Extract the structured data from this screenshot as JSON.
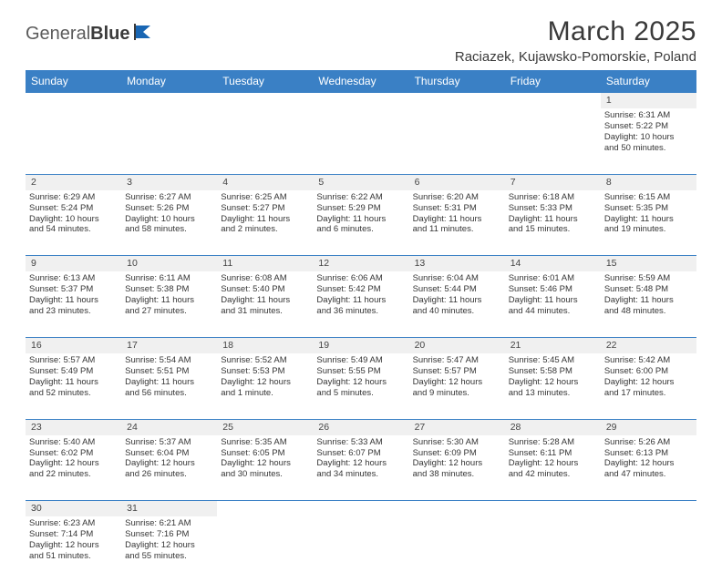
{
  "logo": {
    "word1": "General",
    "word2": "Blue"
  },
  "title": "March 2025",
  "subtitle": "Raciazek, Kujawsko-Pomorskie, Poland",
  "colors": {
    "header_bg": "#3a80c5",
    "header_fg": "#ffffff",
    "daynum_bg": "#f0f0f0",
    "text": "#353535",
    "logo_accent": "#1966b3"
  },
  "weekdays": [
    "Sunday",
    "Monday",
    "Tuesday",
    "Wednesday",
    "Thursday",
    "Friday",
    "Saturday"
  ],
  "weeks": [
    {
      "nums": [
        "",
        "",
        "",
        "",
        "",
        "",
        "1"
      ],
      "cells": [
        null,
        null,
        null,
        null,
        null,
        null,
        {
          "sr": "Sunrise: 6:31 AM",
          "ss": "Sunset: 5:22 PM",
          "d1": "Daylight: 10 hours",
          "d2": "and 50 minutes."
        }
      ]
    },
    {
      "nums": [
        "2",
        "3",
        "4",
        "5",
        "6",
        "7",
        "8"
      ],
      "cells": [
        {
          "sr": "Sunrise: 6:29 AM",
          "ss": "Sunset: 5:24 PM",
          "d1": "Daylight: 10 hours",
          "d2": "and 54 minutes."
        },
        {
          "sr": "Sunrise: 6:27 AM",
          "ss": "Sunset: 5:26 PM",
          "d1": "Daylight: 10 hours",
          "d2": "and 58 minutes."
        },
        {
          "sr": "Sunrise: 6:25 AM",
          "ss": "Sunset: 5:27 PM",
          "d1": "Daylight: 11 hours",
          "d2": "and 2 minutes."
        },
        {
          "sr": "Sunrise: 6:22 AM",
          "ss": "Sunset: 5:29 PM",
          "d1": "Daylight: 11 hours",
          "d2": "and 6 minutes."
        },
        {
          "sr": "Sunrise: 6:20 AM",
          "ss": "Sunset: 5:31 PM",
          "d1": "Daylight: 11 hours",
          "d2": "and 11 minutes."
        },
        {
          "sr": "Sunrise: 6:18 AM",
          "ss": "Sunset: 5:33 PM",
          "d1": "Daylight: 11 hours",
          "d2": "and 15 minutes."
        },
        {
          "sr": "Sunrise: 6:15 AM",
          "ss": "Sunset: 5:35 PM",
          "d1": "Daylight: 11 hours",
          "d2": "and 19 minutes."
        }
      ]
    },
    {
      "nums": [
        "9",
        "10",
        "11",
        "12",
        "13",
        "14",
        "15"
      ],
      "cells": [
        {
          "sr": "Sunrise: 6:13 AM",
          "ss": "Sunset: 5:37 PM",
          "d1": "Daylight: 11 hours",
          "d2": "and 23 minutes."
        },
        {
          "sr": "Sunrise: 6:11 AM",
          "ss": "Sunset: 5:38 PM",
          "d1": "Daylight: 11 hours",
          "d2": "and 27 minutes."
        },
        {
          "sr": "Sunrise: 6:08 AM",
          "ss": "Sunset: 5:40 PM",
          "d1": "Daylight: 11 hours",
          "d2": "and 31 minutes."
        },
        {
          "sr": "Sunrise: 6:06 AM",
          "ss": "Sunset: 5:42 PM",
          "d1": "Daylight: 11 hours",
          "d2": "and 36 minutes."
        },
        {
          "sr": "Sunrise: 6:04 AM",
          "ss": "Sunset: 5:44 PM",
          "d1": "Daylight: 11 hours",
          "d2": "and 40 minutes."
        },
        {
          "sr": "Sunrise: 6:01 AM",
          "ss": "Sunset: 5:46 PM",
          "d1": "Daylight: 11 hours",
          "d2": "and 44 minutes."
        },
        {
          "sr": "Sunrise: 5:59 AM",
          "ss": "Sunset: 5:48 PM",
          "d1": "Daylight: 11 hours",
          "d2": "and 48 minutes."
        }
      ]
    },
    {
      "nums": [
        "16",
        "17",
        "18",
        "19",
        "20",
        "21",
        "22"
      ],
      "cells": [
        {
          "sr": "Sunrise: 5:57 AM",
          "ss": "Sunset: 5:49 PM",
          "d1": "Daylight: 11 hours",
          "d2": "and 52 minutes."
        },
        {
          "sr": "Sunrise: 5:54 AM",
          "ss": "Sunset: 5:51 PM",
          "d1": "Daylight: 11 hours",
          "d2": "and 56 minutes."
        },
        {
          "sr": "Sunrise: 5:52 AM",
          "ss": "Sunset: 5:53 PM",
          "d1": "Daylight: 12 hours",
          "d2": "and 1 minute."
        },
        {
          "sr": "Sunrise: 5:49 AM",
          "ss": "Sunset: 5:55 PM",
          "d1": "Daylight: 12 hours",
          "d2": "and 5 minutes."
        },
        {
          "sr": "Sunrise: 5:47 AM",
          "ss": "Sunset: 5:57 PM",
          "d1": "Daylight: 12 hours",
          "d2": "and 9 minutes."
        },
        {
          "sr": "Sunrise: 5:45 AM",
          "ss": "Sunset: 5:58 PM",
          "d1": "Daylight: 12 hours",
          "d2": "and 13 minutes."
        },
        {
          "sr": "Sunrise: 5:42 AM",
          "ss": "Sunset: 6:00 PM",
          "d1": "Daylight: 12 hours",
          "d2": "and 17 minutes."
        }
      ]
    },
    {
      "nums": [
        "23",
        "24",
        "25",
        "26",
        "27",
        "28",
        "29"
      ],
      "cells": [
        {
          "sr": "Sunrise: 5:40 AM",
          "ss": "Sunset: 6:02 PM",
          "d1": "Daylight: 12 hours",
          "d2": "and 22 minutes."
        },
        {
          "sr": "Sunrise: 5:37 AM",
          "ss": "Sunset: 6:04 PM",
          "d1": "Daylight: 12 hours",
          "d2": "and 26 minutes."
        },
        {
          "sr": "Sunrise: 5:35 AM",
          "ss": "Sunset: 6:05 PM",
          "d1": "Daylight: 12 hours",
          "d2": "and 30 minutes."
        },
        {
          "sr": "Sunrise: 5:33 AM",
          "ss": "Sunset: 6:07 PM",
          "d1": "Daylight: 12 hours",
          "d2": "and 34 minutes."
        },
        {
          "sr": "Sunrise: 5:30 AM",
          "ss": "Sunset: 6:09 PM",
          "d1": "Daylight: 12 hours",
          "d2": "and 38 minutes."
        },
        {
          "sr": "Sunrise: 5:28 AM",
          "ss": "Sunset: 6:11 PM",
          "d1": "Daylight: 12 hours",
          "d2": "and 42 minutes."
        },
        {
          "sr": "Sunrise: 5:26 AM",
          "ss": "Sunset: 6:13 PM",
          "d1": "Daylight: 12 hours",
          "d2": "and 47 minutes."
        }
      ]
    },
    {
      "nums": [
        "30",
        "31",
        "",
        "",
        "",
        "",
        ""
      ],
      "cells": [
        {
          "sr": "Sunrise: 6:23 AM",
          "ss": "Sunset: 7:14 PM",
          "d1": "Daylight: 12 hours",
          "d2": "and 51 minutes."
        },
        {
          "sr": "Sunrise: 6:21 AM",
          "ss": "Sunset: 7:16 PM",
          "d1": "Daylight: 12 hours",
          "d2": "and 55 minutes."
        },
        null,
        null,
        null,
        null,
        null
      ]
    }
  ]
}
